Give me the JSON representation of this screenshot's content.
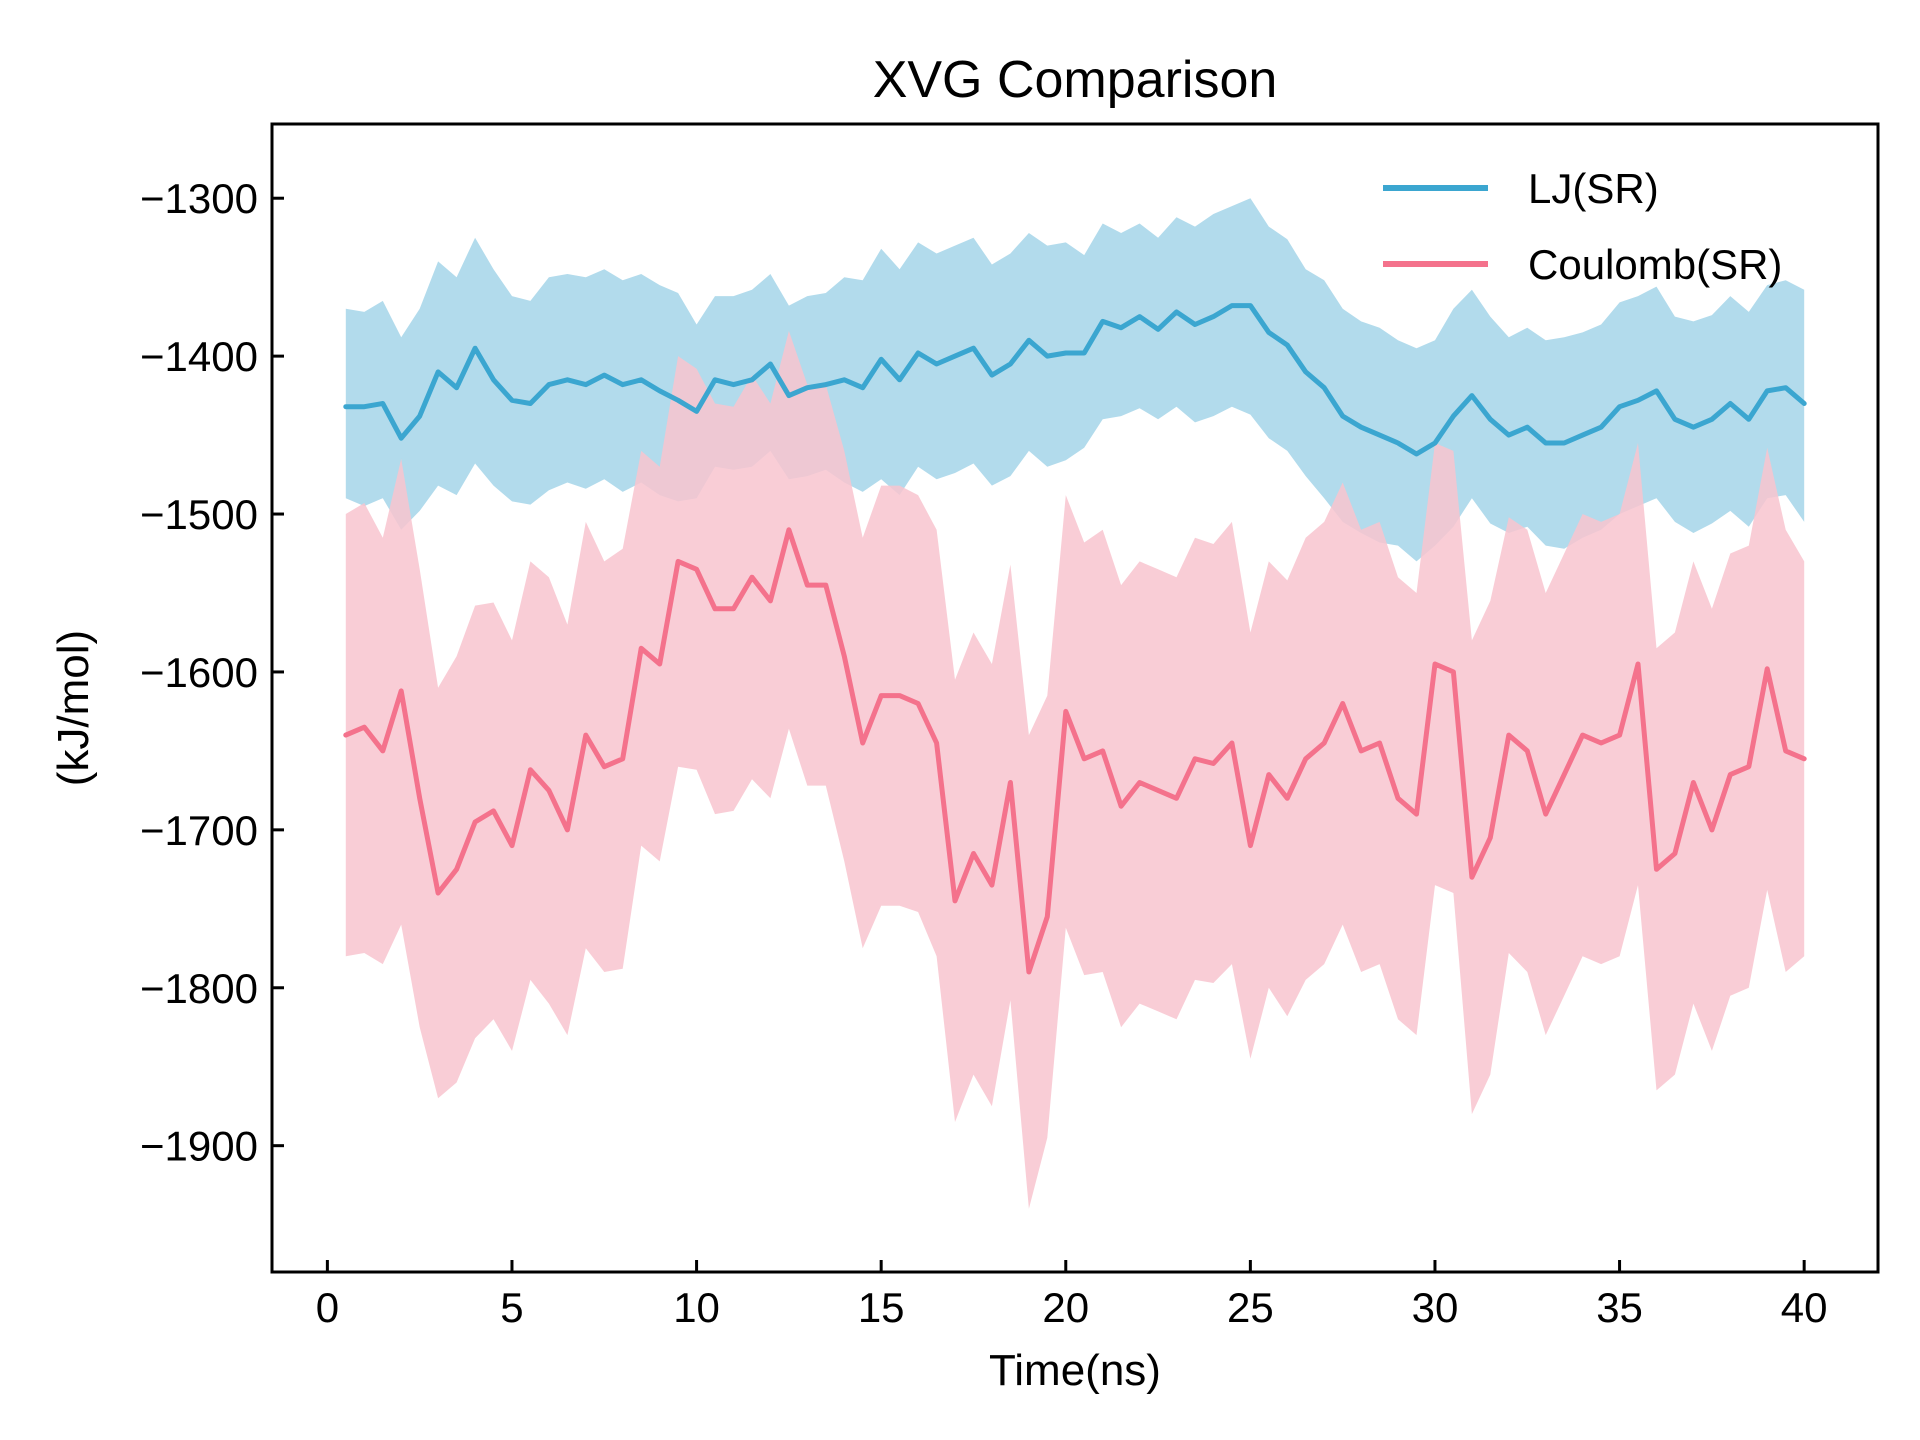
{
  "chart_data": {
    "type": "line",
    "title": "XVG Comparison",
    "xlabel": "Time(ns)",
    "ylabel": "(kJ/mol)",
    "xlim": [
      -1.5,
      42
    ],
    "ylim": [
      -1980,
      -1253
    ],
    "xticks": [
      0,
      5,
      10,
      15,
      20,
      25,
      30,
      35,
      40
    ],
    "yticks": [
      -1300,
      -1400,
      -1500,
      -1600,
      -1700,
      -1800,
      -1900
    ],
    "xtick_labels": [
      "0",
      "5",
      "10",
      "15",
      "20",
      "25",
      "30",
      "35",
      "40"
    ],
    "ytick_labels": [
      "−1300",
      "−1400",
      "−1500",
      "−1600",
      "−1700",
      "−1800",
      "−1900"
    ],
    "grid": false,
    "legend_position": "top-right",
    "series": [
      {
        "name": "LJ(SR)",
        "color": "#3ba6d0",
        "band_color": "#b2dbec",
        "x": [
          0.5,
          1,
          1.5,
          2,
          2.5,
          3,
          3.5,
          4,
          4.5,
          5,
          5.5,
          6,
          6.5,
          7,
          7.5,
          8,
          8.5,
          9,
          9.5,
          10,
          10.5,
          11,
          11.5,
          12,
          12.5,
          13,
          13.5,
          14,
          14.5,
          15,
          15.5,
          16,
          16.5,
          17,
          17.5,
          18,
          18.5,
          19,
          19.5,
          20,
          20.5,
          21,
          21.5,
          22,
          22.5,
          23,
          23.5,
          24,
          24.5,
          25,
          25.5,
          26,
          26.5,
          27,
          27.5,
          28,
          28.5,
          29,
          29.5,
          30,
          30.5,
          31,
          31.5,
          32,
          32.5,
          33,
          33.5,
          34,
          34.5,
          35,
          35.5,
          36,
          36.5,
          37,
          37.5,
          38,
          38.5,
          39,
          39.5,
          40
        ],
        "y": [
          -1432,
          -1432,
          -1430,
          -1452,
          -1438,
          -1410,
          -1420,
          -1395,
          -1415,
          -1428,
          -1430,
          -1418,
          -1415,
          -1418,
          -1412,
          -1418,
          -1415,
          -1422,
          -1428,
          -1435,
          -1415,
          -1418,
          -1415,
          -1405,
          -1425,
          -1420,
          -1418,
          -1415,
          -1420,
          -1402,
          -1415,
          -1398,
          -1405,
          -1400,
          -1395,
          -1412,
          -1405,
          -1390,
          -1400,
          -1398,
          -1398,
          -1378,
          -1382,
          -1375,
          -1383,
          -1372,
          -1380,
          -1375,
          -1368,
          -1368,
          -1385,
          -1393,
          -1410,
          -1420,
          -1438,
          -1445,
          -1450,
          -1455,
          -1462,
          -1455,
          -1438,
          -1425,
          -1440,
          -1450,
          -1445,
          -1455,
          -1455,
          -1450,
          -1445,
          -1432,
          -1428,
          -1422,
          -1440,
          -1445,
          -1440,
          -1430,
          -1440,
          -1422,
          -1420,
          -1430
        ],
        "lower": [
          -1490,
          -1495,
          -1490,
          -1510,
          -1498,
          -1482,
          -1488,
          -1468,
          -1482,
          -1492,
          -1494,
          -1485,
          -1480,
          -1484,
          -1478,
          -1486,
          -1480,
          -1488,
          -1492,
          -1490,
          -1470,
          -1472,
          -1470,
          -1460,
          -1478,
          -1476,
          -1472,
          -1480,
          -1486,
          -1478,
          -1488,
          -1470,
          -1478,
          -1474,
          -1468,
          -1482,
          -1476,
          -1460,
          -1470,
          -1466,
          -1458,
          -1440,
          -1438,
          -1433,
          -1440,
          -1432,
          -1442,
          -1438,
          -1432,
          -1437,
          -1452,
          -1460,
          -1476,
          -1490,
          -1505,
          -1512,
          -1518,
          -1520,
          -1530,
          -1520,
          -1508,
          -1490,
          -1506,
          -1512,
          -1508,
          -1520,
          -1522,
          -1515,
          -1510,
          -1500,
          -1495,
          -1490,
          -1505,
          -1512,
          -1506,
          -1498,
          -1508,
          -1490,
          -1488,
          -1505
        ],
        "upper": [
          -1370,
          -1372,
          -1365,
          -1388,
          -1370,
          -1340,
          -1350,
          -1325,
          -1345,
          -1362,
          -1365,
          -1350,
          -1348,
          -1350,
          -1345,
          -1352,
          -1348,
          -1355,
          -1360,
          -1380,
          -1362,
          -1362,
          -1358,
          -1348,
          -1368,
          -1362,
          -1360,
          -1350,
          -1352,
          -1332,
          -1345,
          -1328,
          -1335,
          -1330,
          -1325,
          -1342,
          -1335,
          -1322,
          -1330,
          -1328,
          -1336,
          -1316,
          -1322,
          -1316,
          -1325,
          -1312,
          -1318,
          -1310,
          -1305,
          -1300,
          -1318,
          -1326,
          -1345,
          -1352,
          -1370,
          -1378,
          -1382,
          -1390,
          -1395,
          -1390,
          -1370,
          -1358,
          -1375,
          -1388,
          -1382,
          -1390,
          -1388,
          -1385,
          -1380,
          -1366,
          -1362,
          -1356,
          -1375,
          -1378,
          -1374,
          -1362,
          -1372,
          -1355,
          -1352,
          -1358
        ]
      },
      {
        "name": "Coulomb(SR)",
        "color": "#f4728c",
        "band_color": "#f8c4cf",
        "x": [
          0.5,
          1,
          1.5,
          2,
          2.5,
          3,
          3.5,
          4,
          4.5,
          5,
          5.5,
          6,
          6.5,
          7,
          7.5,
          8,
          8.5,
          9,
          9.5,
          10,
          10.5,
          11,
          11.5,
          12,
          12.5,
          13,
          13.5,
          14,
          14.5,
          15,
          15.5,
          16,
          16.5,
          17,
          17.5,
          18,
          18.5,
          19,
          19.5,
          20,
          20.5,
          21,
          21.5,
          22,
          22.5,
          23,
          23.5,
          24,
          24.5,
          25,
          25.5,
          26,
          26.5,
          27,
          27.5,
          28,
          28.5,
          29,
          29.5,
          30,
          30.5,
          31,
          31.5,
          32,
          32.5,
          33,
          33.5,
          34,
          34.5,
          35,
          35.5,
          36,
          36.5,
          37,
          37.5,
          38,
          38.5,
          39,
          39.5,
          40
        ],
        "y": [
          -1640,
          -1635,
          -1650,
          -1612,
          -1680,
          -1740,
          -1725,
          -1695,
          -1688,
          -1710,
          -1662,
          -1675,
          -1700,
          -1640,
          -1660,
          -1655,
          -1585,
          -1595,
          -1530,
          -1535,
          -1560,
          -1560,
          -1540,
          -1555,
          -1510,
          -1545,
          -1545,
          -1590,
          -1645,
          -1615,
          -1615,
          -1620,
          -1645,
          -1745,
          -1715,
          -1735,
          -1670,
          -1790,
          -1755,
          -1625,
          -1655,
          -1650,
          -1685,
          -1670,
          -1675,
          -1680,
          -1655,
          -1658,
          -1645,
          -1710,
          -1665,
          -1680,
          -1655,
          -1645,
          -1620,
          -1650,
          -1645,
          -1680,
          -1690,
          -1595,
          -1600,
          -1730,
          -1705,
          -1640,
          -1650,
          -1690,
          -1665,
          -1640,
          -1645,
          -1640,
          -1595,
          -1725,
          -1715,
          -1670,
          -1700,
          -1665,
          -1660,
          -1598,
          -1650,
          -1655
        ],
        "lower": [
          -1780,
          -1778,
          -1785,
          -1760,
          -1825,
          -1870,
          -1860,
          -1832,
          -1820,
          -1840,
          -1795,
          -1810,
          -1830,
          -1775,
          -1790,
          -1788,
          -1710,
          -1720,
          -1660,
          -1662,
          -1690,
          -1688,
          -1668,
          -1680,
          -1636,
          -1672,
          -1672,
          -1720,
          -1775,
          -1748,
          -1748,
          -1752,
          -1780,
          -1885,
          -1855,
          -1875,
          -1808,
          -1940,
          -1895,
          -1762,
          -1792,
          -1790,
          -1825,
          -1810,
          -1815,
          -1820,
          -1795,
          -1797,
          -1785,
          -1845,
          -1800,
          -1818,
          -1795,
          -1785,
          -1760,
          -1790,
          -1785,
          -1820,
          -1830,
          -1735,
          -1740,
          -1880,
          -1855,
          -1778,
          -1790,
          -1830,
          -1805,
          -1780,
          -1785,
          -1780,
          -1735,
          -1865,
          -1855,
          -1810,
          -1840,
          -1805,
          -1800,
          -1738,
          -1790,
          -1780
        ],
        "upper": [
          -1500,
          -1493,
          -1515,
          -1465,
          -1535,
          -1610,
          -1590,
          -1558,
          -1556,
          -1580,
          -1530,
          -1540,
          -1570,
          -1505,
          -1530,
          -1522,
          -1460,
          -1470,
          -1400,
          -1408,
          -1430,
          -1432,
          -1412,
          -1430,
          -1384,
          -1418,
          -1418,
          -1460,
          -1515,
          -1482,
          -1482,
          -1488,
          -1510,
          -1605,
          -1575,
          -1595,
          -1532,
          -1640,
          -1615,
          -1488,
          -1518,
          -1510,
          -1545,
          -1530,
          -1535,
          -1540,
          -1515,
          -1519,
          -1505,
          -1575,
          -1530,
          -1542,
          -1515,
          -1505,
          -1480,
          -1510,
          -1505,
          -1540,
          -1550,
          -1455,
          -1460,
          -1580,
          -1555,
          -1502,
          -1510,
          -1550,
          -1525,
          -1500,
          -1505,
          -1500,
          -1455,
          -1585,
          -1575,
          -1530,
          -1560,
          -1525,
          -1520,
          -1458,
          -1510,
          -1530
        ]
      }
    ]
  }
}
